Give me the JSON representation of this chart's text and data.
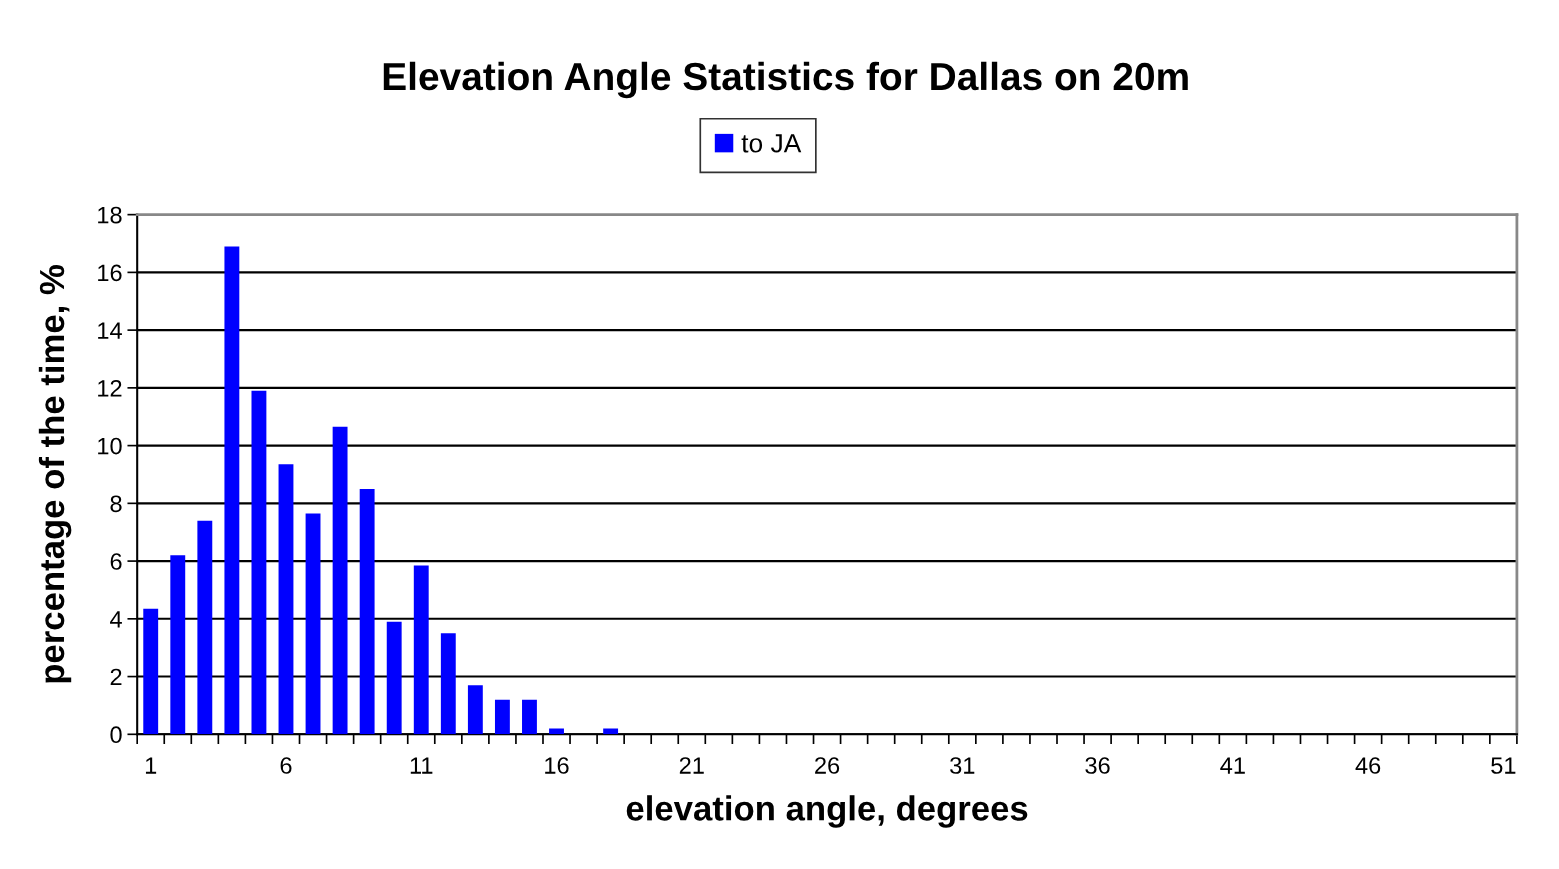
{
  "chart_data": {
    "type": "bar",
    "title": "Elevation Angle Statistics for Dallas on 20m",
    "xlabel": "elevation angle, degrees",
    "ylabel": "percentage of the time, %",
    "categories": [
      "1",
      null,
      null,
      null,
      null,
      "6",
      null,
      null,
      null,
      null,
      "11",
      null,
      null,
      null,
      null,
      "16",
      null,
      null,
      null,
      null,
      "21",
      null,
      null,
      null,
      null,
      "26",
      null,
      null,
      null,
      null,
      "31",
      null,
      null,
      null,
      null,
      "36",
      null,
      null,
      null,
      null,
      "41",
      null,
      null,
      null,
      null,
      "46",
      null,
      null,
      null,
      null,
      "51"
    ],
    "series": [
      {
        "name": "to JA",
        "color": "#0000ff",
        "values": [
          4.35,
          6.2,
          7.4,
          16.9,
          11.9,
          9.35,
          7.65,
          10.65,
          8.5,
          3.9,
          5.85,
          3.5,
          1.7,
          1.2,
          1.2,
          0.2,
          0,
          0.2,
          0,
          0,
          0,
          0,
          0,
          0,
          0,
          0,
          0,
          0,
          0,
          0,
          0,
          0,
          0,
          0,
          0,
          0,
          0,
          0,
          0,
          0,
          0,
          0,
          0,
          0,
          0,
          0,
          0,
          0,
          0,
          0,
          0
        ]
      }
    ],
    "ylim": [
      0,
      18
    ],
    "yticks": [
      0,
      2,
      4,
      6,
      8,
      10,
      12,
      14,
      16,
      18
    ],
    "grid": "y",
    "legend": "top"
  }
}
